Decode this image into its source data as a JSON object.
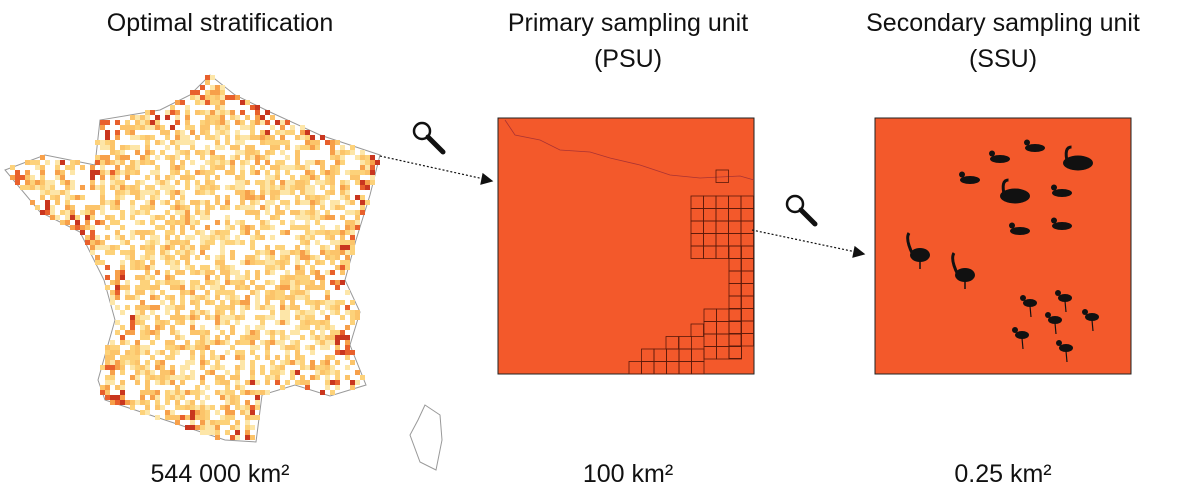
{
  "panels": [
    {
      "title": [
        "Optimal stratification"
      ],
      "area": "544 000 km²"
    },
    {
      "title": [
        "Primary sampling unit",
        "(PSU)"
      ],
      "area": "100 km²"
    },
    {
      "title": [
        "Secondary sampling unit",
        "(SSU)"
      ],
      "area": "0.25 km²"
    }
  ]
}
